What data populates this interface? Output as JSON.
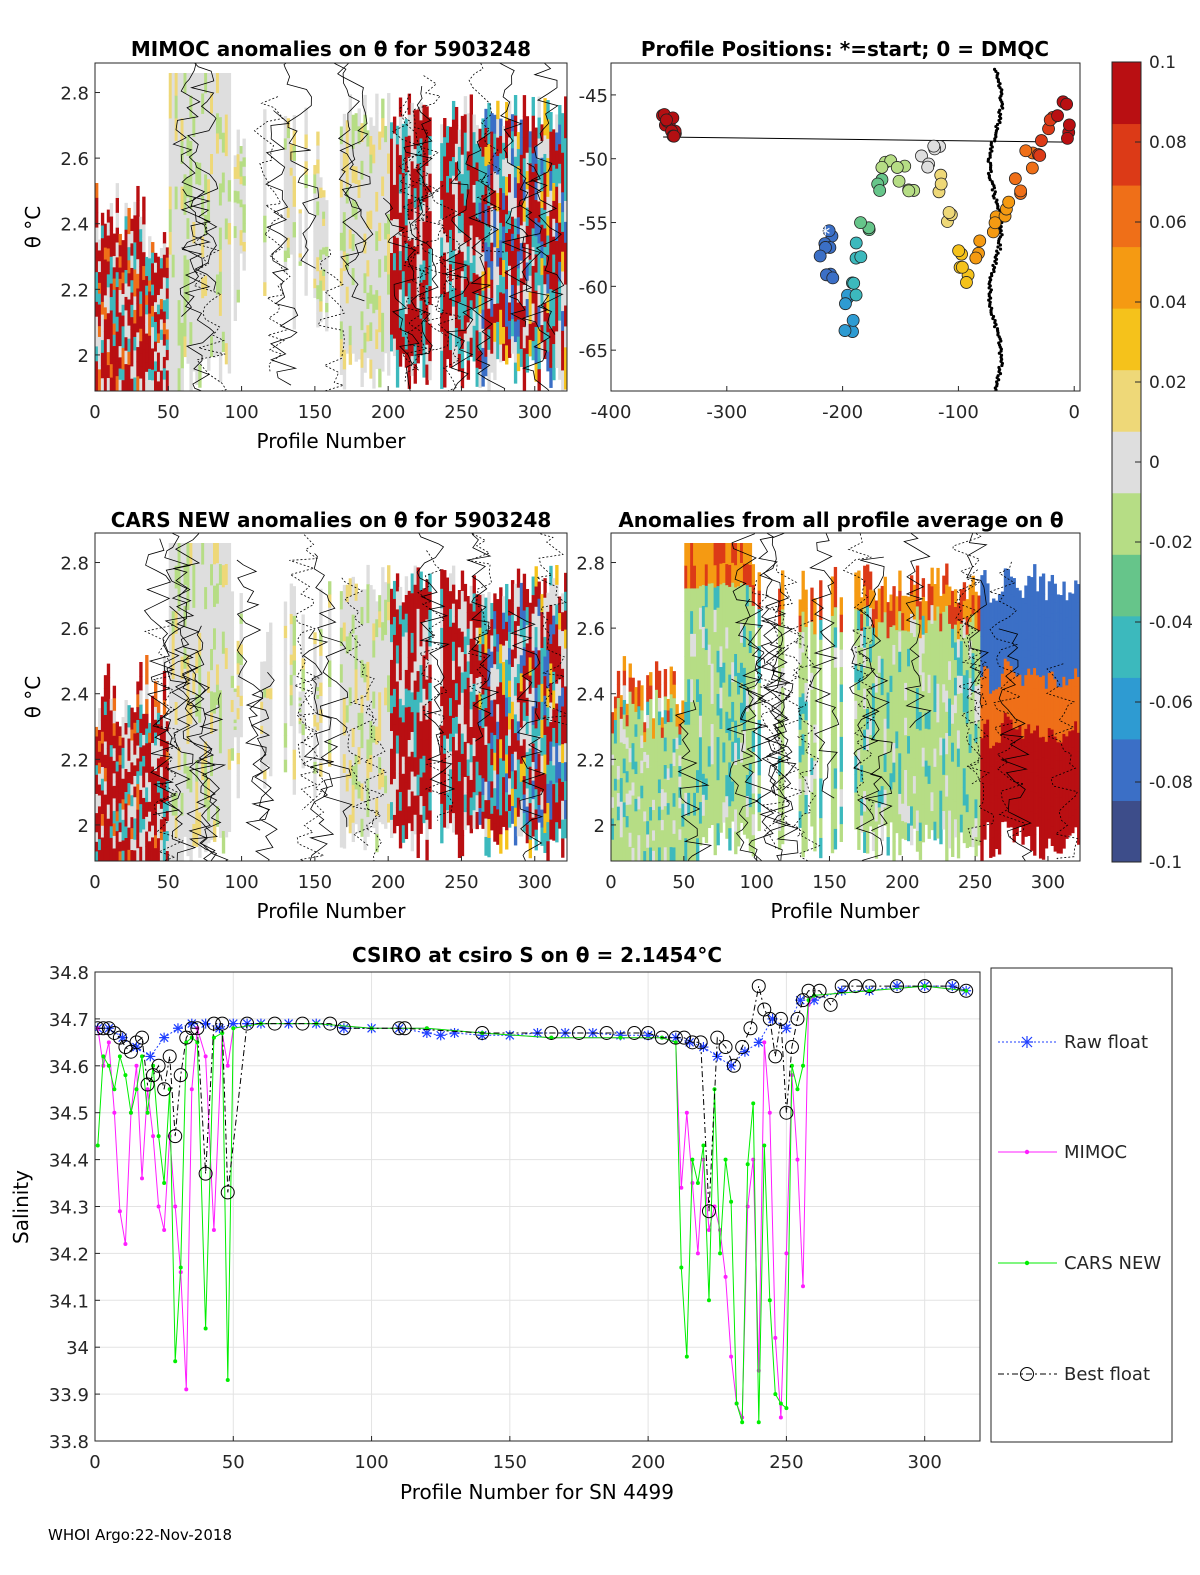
{
  "footer": "WHOI Argo:22-Nov-2018",
  "colorbar": {
    "ticks": [
      "0.1",
      "0.08",
      "0.06",
      "0.04",
      "0.02",
      "0",
      "-0.02",
      "-0.04",
      "-0.06",
      "-0.08",
      "-0.1"
    ],
    "colors": [
      "#3d4d8a",
      "#3b6fc6",
      "#2e9bd2",
      "#3cb9bd",
      "#66c58a",
      "#b6dd85",
      "#dedede",
      "#eed878",
      "#f5c21b",
      "#f59a12",
      "#ef6f18",
      "#dc3a17",
      "#b90f12"
    ]
  },
  "panels": {
    "mimoc": {
      "title": "MIMOC anomalies on θ  for 5903248",
      "xlabel": "Profile Number",
      "ylabel": "θ °C",
      "xticks": [
        "0",
        "50",
        "100",
        "150",
        "200",
        "250",
        "300"
      ],
      "yticks": [
        "2",
        "2.2",
        "2.4",
        "2.6",
        "2.8"
      ]
    },
    "positions": {
      "title": "Profile Positions: *=start; 0 = DMQC",
      "xticks": [
        "-400",
        "-300",
        "-200",
        "-100",
        "0"
      ],
      "yticks": [
        "-45",
        "-50",
        "-55",
        "-60",
        "-65"
      ]
    },
    "cars": {
      "title": "CARS NEW anomalies on θ for 5903248",
      "xlabel": "Profile Number",
      "ylabel": "θ °C",
      "xticks": [
        "0",
        "50",
        "100",
        "150",
        "200",
        "250",
        "300"
      ],
      "yticks": [
        "2",
        "2.2",
        "2.4",
        "2.6",
        "2.8"
      ]
    },
    "average": {
      "title": "Anomalies from all profile average on θ",
      "xlabel": "Profile Number",
      "xticks": [
        "0",
        "50",
        "100",
        "150",
        "200",
        "250",
        "300"
      ],
      "yticks": [
        "2",
        "2.2",
        "2.4",
        "2.6",
        "2.8"
      ]
    }
  },
  "chart_data": {
    "type": "line",
    "title": "CSIRO at csiro S on θ = 2.1454°C",
    "xlabel": "Profile Number for SN 4499",
    "ylabel": "Salinity",
    "xlim": [
      0,
      320
    ],
    "ylim": [
      33.8,
      34.8
    ],
    "xticks": [
      "0",
      "50",
      "100",
      "150",
      "200",
      "250",
      "300"
    ],
    "yticks": [
      "33.8",
      "33.9",
      "34",
      "34.1",
      "34.2",
      "34.3",
      "34.4",
      "34.5",
      "34.6",
      "34.7",
      "34.8"
    ],
    "legend_position": "right",
    "series": [
      {
        "name": "Raw float",
        "color": "#1f3fff",
        "x": [
          1,
          5,
          10,
          15,
          20,
          25,
          30,
          35,
          40,
          45,
          50,
          55,
          60,
          70,
          80,
          90,
          100,
          110,
          120,
          125,
          130,
          140,
          150,
          160,
          170,
          180,
          190,
          200,
          210,
          215,
          220,
          225,
          230,
          235,
          240,
          245,
          250,
          255,
          260,
          270,
          280,
          290,
          300,
          310,
          315
        ],
        "y": [
          34.68,
          34.68,
          34.66,
          34.64,
          34.62,
          34.66,
          34.68,
          34.69,
          34.69,
          34.68,
          34.69,
          34.69,
          34.69,
          34.69,
          34.69,
          34.68,
          34.68,
          34.68,
          34.67,
          34.665,
          34.67,
          34.665,
          34.665,
          34.67,
          34.67,
          34.67,
          34.665,
          34.665,
          34.66,
          34.65,
          34.64,
          34.62,
          34.6,
          34.63,
          34.65,
          34.7,
          34.68,
          34.74,
          34.74,
          34.76,
          34.76,
          34.77,
          34.77,
          34.77,
          34.76
        ]
      },
      {
        "name": "MIMOC",
        "color": "#ff1dff",
        "x": [
          1,
          3,
          5,
          7,
          9,
          11,
          13,
          15,
          17,
          19,
          21,
          23,
          25,
          27,
          29,
          31,
          33,
          35,
          37,
          40,
          43,
          46,
          48,
          50,
          60,
          80,
          100,
          120,
          140,
          165,
          190,
          205,
          210,
          212,
          214,
          216,
          218,
          220,
          222,
          224,
          226,
          228,
          230,
          232,
          234,
          236,
          238,
          240,
          242,
          244,
          246,
          248,
          250,
          252,
          254,
          256,
          258,
          260,
          280,
          300,
          315
        ],
        "y": [
          34.68,
          34.6,
          34.65,
          34.5,
          34.29,
          34.22,
          34.5,
          34.6,
          34.36,
          34.55,
          34.45,
          34.3,
          34.25,
          34.45,
          34.3,
          34.16,
          33.91,
          34.55,
          34.68,
          34.62,
          34.25,
          34.67,
          34.6,
          34.68,
          34.69,
          34.69,
          34.68,
          34.68,
          34.67,
          34.66,
          34.66,
          34.66,
          34.65,
          34.34,
          34.5,
          34.35,
          34.2,
          34.4,
          34.25,
          34.3,
          34.25,
          34.15,
          33.98,
          33.88,
          33.85,
          34.3,
          34.4,
          33.95,
          34.65,
          34.5,
          34.02,
          33.85,
          34.2,
          34.58,
          34.4,
          34.13,
          34.73,
          34.75,
          34.76,
          34.77,
          34.76
        ]
      },
      {
        "name": "CARS NEW",
        "color": "#00ee00",
        "x": [
          1,
          3,
          5,
          7,
          9,
          11,
          13,
          15,
          17,
          19,
          21,
          23,
          25,
          27,
          29,
          31,
          33,
          35,
          37,
          40,
          43,
          46,
          48,
          50,
          60,
          80,
          100,
          120,
          140,
          165,
          190,
          205,
          210,
          212,
          214,
          216,
          218,
          220,
          222,
          224,
          226,
          228,
          230,
          232,
          234,
          236,
          238,
          240,
          242,
          244,
          246,
          248,
          250,
          252,
          254,
          256,
          258,
          260,
          280,
          300,
          315
        ],
        "y": [
          34.43,
          34.62,
          34.6,
          34.55,
          34.62,
          34.58,
          34.5,
          34.55,
          34.62,
          34.5,
          34.6,
          34.45,
          34.35,
          34.55,
          33.97,
          34.17,
          34.65,
          34.66,
          34.65,
          34.04,
          34.66,
          34.67,
          33.93,
          34.68,
          34.69,
          34.69,
          34.68,
          34.68,
          34.67,
          34.66,
          34.66,
          34.66,
          34.65,
          34.17,
          33.98,
          34.4,
          34.35,
          34.43,
          34.1,
          34.55,
          34.2,
          34.4,
          34.31,
          33.88,
          33.84,
          34.39,
          34.52,
          33.84,
          34.43,
          34.1,
          33.9,
          33.88,
          33.87,
          34.6,
          34.55,
          34.6,
          34.74,
          34.75,
          34.76,
          34.77,
          34.76
        ]
      },
      {
        "name": "Best float",
        "color": "#000000",
        "x": [
          1,
          3,
          5,
          7,
          9,
          11,
          13,
          15,
          17,
          19,
          21,
          23,
          25,
          27,
          29,
          31,
          33,
          35,
          37,
          40,
          43,
          46,
          48,
          55,
          65,
          75,
          85,
          90,
          110,
          112,
          140,
          165,
          175,
          185,
          195,
          200,
          205,
          210,
          213,
          216,
          219,
          222,
          225,
          228,
          231,
          234,
          237,
          240,
          242,
          244,
          246,
          248,
          250,
          252,
          254,
          256,
          258,
          262,
          266,
          270,
          275,
          280,
          290,
          300,
          310,
          315
        ],
        "y": [
          34.68,
          34.68,
          34.68,
          34.67,
          34.66,
          34.64,
          34.63,
          34.65,
          34.66,
          34.56,
          34.58,
          34.6,
          34.55,
          34.62,
          34.45,
          34.58,
          34.66,
          34.68,
          34.68,
          34.37,
          34.69,
          34.69,
          34.33,
          34.69,
          34.69,
          34.69,
          34.69,
          34.68,
          34.68,
          34.68,
          34.67,
          34.67,
          34.67,
          34.67,
          34.67,
          34.67,
          34.66,
          34.66,
          34.66,
          34.65,
          34.65,
          34.29,
          34.66,
          34.64,
          34.6,
          34.64,
          34.68,
          34.77,
          34.72,
          34.7,
          34.62,
          34.7,
          34.5,
          34.64,
          34.7,
          34.74,
          34.76,
          34.76,
          34.73,
          34.77,
          34.77,
          34.77,
          34.77,
          34.77,
          34.77,
          34.76
        ]
      }
    ]
  }
}
